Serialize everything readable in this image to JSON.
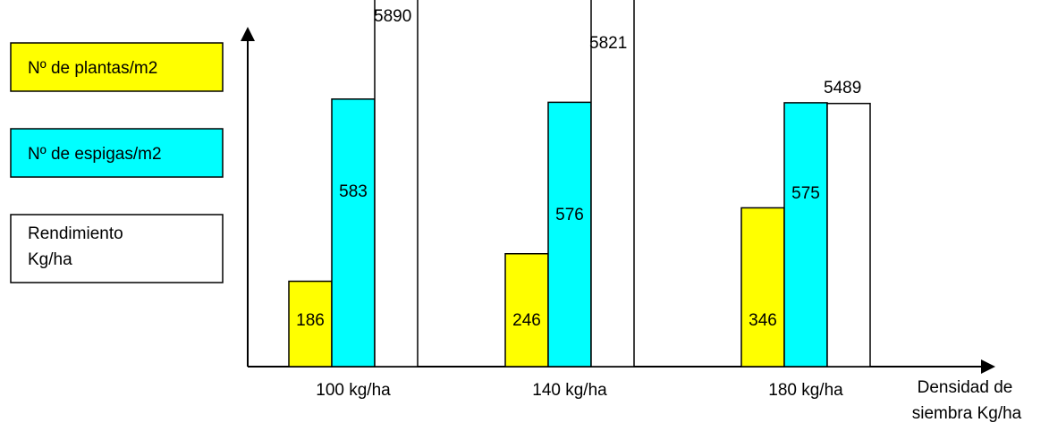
{
  "chart_data": {
    "type": "bar",
    "categories": [
      "100 kg/ha",
      "140 kg/ha",
      "180 kg/ha"
    ],
    "series": [
      {
        "name": "Nº de plantas/m2",
        "values": [
          186,
          246,
          346
        ],
        "labels": [
          "186",
          "246",
          "346"
        ],
        "color": "#ffff00",
        "label_position": "inside"
      },
      {
        "name": "Nº de espigas/m2",
        "values": [
          583,
          576,
          575
        ],
        "labels": [
          "583",
          "576",
          "575"
        ],
        "color": "#00ffff",
        "label_position": "inside"
      },
      {
        "name": "Rendimiento Kg/ha",
        "name_lines": [
          "Rendimiento",
          "Kg/ha"
        ],
        "values": [
          5890,
          5821,
          5489
        ],
        "labels": [
          "5890",
          "5821",
          "5489"
        ],
        "color": "#ffffff",
        "label_position": "above"
      }
    ],
    "xlabel": "Densidad de siembra Kg/ha",
    "xlabel_lines": [
      "Densidad de",
      "siembra Kg/ha"
    ],
    "ylabel": "",
    "legend_position": "left",
    "grid": false,
    "axis_color": "#000000"
  }
}
